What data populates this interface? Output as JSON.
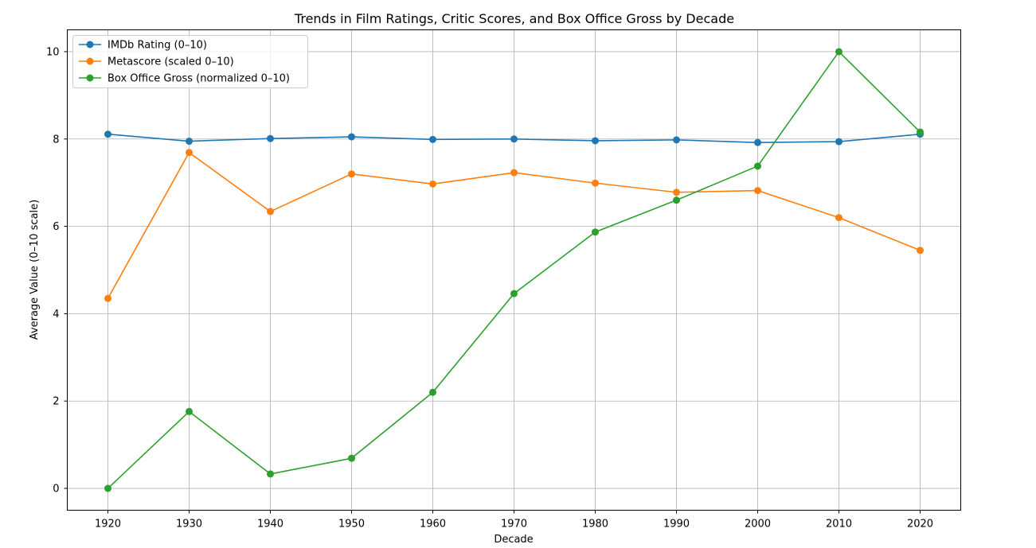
{
  "chart_data": {
    "type": "line",
    "title": "Trends in Film Ratings, Critic Scores, and Box Office Gross by Decade",
    "xlabel": "Decade",
    "ylabel": "Average Value (0–10 scale)",
    "x": [
      1920,
      1930,
      1940,
      1950,
      1960,
      1970,
      1980,
      1990,
      2000,
      2010,
      2020
    ],
    "xticks": [
      1920,
      1930,
      1940,
      1950,
      1960,
      1970,
      1980,
      1990,
      2000,
      2010,
      2020
    ],
    "yticks": [
      0,
      2,
      4,
      6,
      8,
      10
    ],
    "xlim": [
      1915,
      2025
    ],
    "ylim": [
      -0.5,
      10.5
    ],
    "grid": true,
    "legend_position": "upper-left",
    "series": [
      {
        "name": "IMDb Rating (0–10)",
        "color": "#1f77b4",
        "values": [
          8.11,
          7.95,
          8.01,
          8.05,
          7.99,
          8.0,
          7.96,
          7.98,
          7.92,
          7.94,
          8.11
        ]
      },
      {
        "name": "Metascore (scaled 0–10)",
        "color": "#ff7f0e",
        "values": [
          4.35,
          7.69,
          6.34,
          7.2,
          6.97,
          7.23,
          6.99,
          6.78,
          6.82,
          6.2,
          5.45
        ]
      },
      {
        "name": "Box Office Gross (normalized 0–10)",
        "color": "#2ca02c",
        "values": [
          0.0,
          1.76,
          0.33,
          0.69,
          2.2,
          4.46,
          5.87,
          6.6,
          7.38,
          10.0,
          8.16
        ]
      }
    ]
  }
}
